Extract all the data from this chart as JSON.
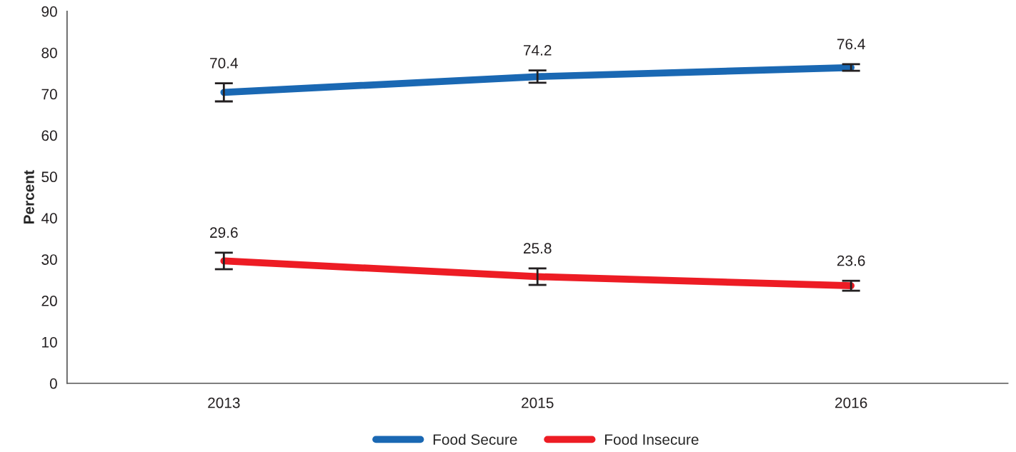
{
  "chart_data": {
    "type": "line",
    "ylabel": "Percent",
    "categories": [
      "2013",
      "2015",
      "2016"
    ],
    "series": [
      {
        "name": "Food Secure",
        "color": "#1a68b3",
        "values": [
          70.4,
          74.2,
          76.4
        ],
        "errors": [
          2.2,
          1.5,
          0.8
        ]
      },
      {
        "name": "Food Insecure",
        "color": "#ed1c24",
        "values": [
          29.6,
          25.8,
          23.6
        ],
        "errors": [
          2.0,
          2.0,
          1.2
        ]
      }
    ],
    "ylim": [
      0,
      90
    ],
    "yticks": [
      0,
      10,
      20,
      30,
      40,
      50,
      60,
      70,
      80,
      90
    ],
    "data_labels": true,
    "grid": false,
    "legend": "bottom",
    "marker": "none",
    "line_style": "solid"
  }
}
